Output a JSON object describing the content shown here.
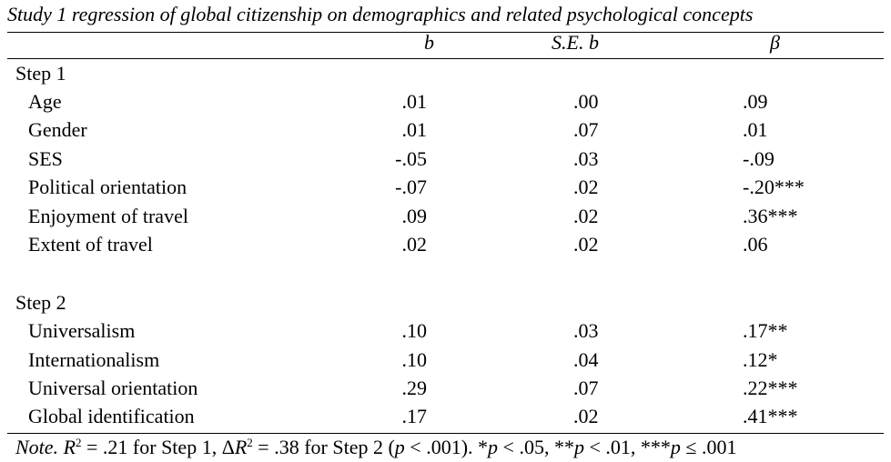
{
  "title": "Study 1 regression of global citizenship on demographics and related psychological concepts",
  "columns": {
    "b": "b",
    "se": "S.E. b",
    "beta": "β"
  },
  "step1": {
    "label": "Step 1",
    "rows": [
      {
        "label": "Age",
        "b": ".01",
        "se": ".00",
        "beta": ".09"
      },
      {
        "label": "Gender",
        "b": ".01",
        "se": ".07",
        "beta": ".01"
      },
      {
        "label": "SES",
        "b": "-.05",
        "se": ".03",
        "beta": "-.09"
      },
      {
        "label": "Political orientation",
        "b": "-.07",
        "se": ".02",
        "beta": "-.20***"
      },
      {
        "label": "Enjoyment of travel",
        "b": ".09",
        "se": ".02",
        "beta": ".36***"
      },
      {
        "label": "Extent of travel",
        "b": ".02",
        "se": ".02",
        "beta": ".06"
      }
    ]
  },
  "step2": {
    "label": "Step 2",
    "rows": [
      {
        "label": "Universalism",
        "b": ".10",
        "se": ".03",
        "beta": ".17**"
      },
      {
        "label": "Internationalism",
        "b": ".10",
        "se": ".04",
        "beta": ".12*"
      },
      {
        "label": "Universal orientation",
        "b": ".29",
        "se": ".07",
        "beta": ".22***"
      },
      {
        "label": "Global identification",
        "b": ".17",
        "se": ".02",
        "beta": ".41***"
      }
    ]
  },
  "note": {
    "lead": "Note.",
    "r_symbol": "R",
    "sup": "2",
    "text1": " = .21 for Step 1, Δ",
    "text2": " = .38 for Step 2 (",
    "p": "p",
    "text3": " < .001). *",
    "text4": " < .05, **",
    "text5": " < .01, ***",
    "text6": " ≤ .001"
  }
}
